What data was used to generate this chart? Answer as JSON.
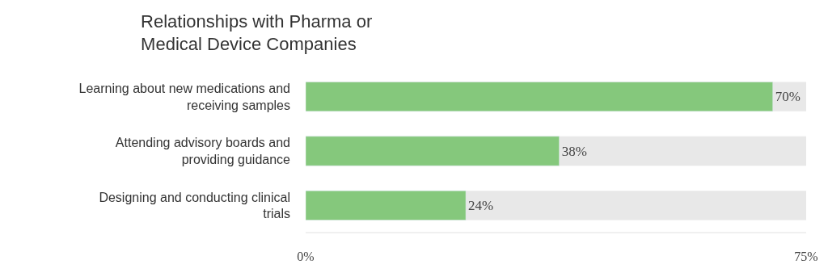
{
  "chart_data": {
    "type": "bar",
    "orientation": "horizontal",
    "title": "Relationships with Pharma or Medical Device Companies",
    "categories": [
      "Learning about new medications and receiving samples",
      "Attending advisory boards and providing guidance",
      "Designing and conducting clinical trials"
    ],
    "values": [
      70,
      38,
      24
    ],
    "color": "#85c87c",
    "value_labels": [
      "70%",
      "38%",
      "24%"
    ],
    "xlim": [
      0,
      75
    ],
    "xticks": [
      {
        "value": 0,
        "label": "0%"
      },
      {
        "value": 75,
        "label": "75%"
      }
    ],
    "grid": false,
    "legend": false
  }
}
